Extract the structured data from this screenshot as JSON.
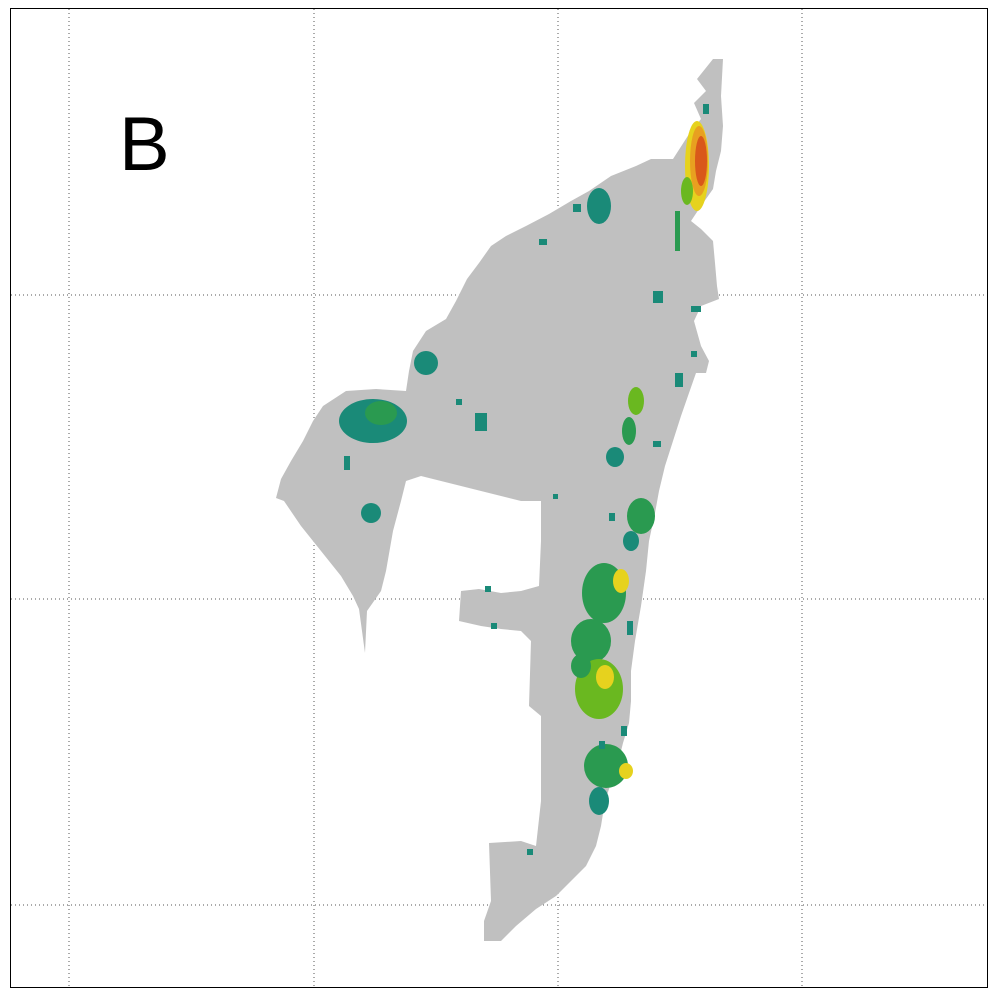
{
  "panel": {
    "label": "B"
  },
  "map": {
    "grid": true,
    "grid_style": "dotted",
    "land_color": "#c0c0c0",
    "background_color": "#ffffff",
    "heat_colors": {
      "low": "#1a8a78",
      "low_mid": "#2a9a50",
      "mid": "#6ab820",
      "high": "#e6d21e",
      "very_high": "#e8a020",
      "max": "#d9581a"
    }
  }
}
